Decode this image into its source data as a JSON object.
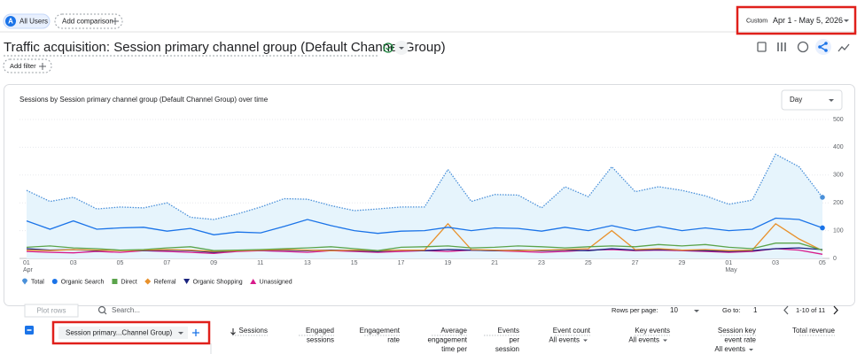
{
  "filters": {
    "segment_initial": "A",
    "segment": "All Users",
    "add_comparison": "Add comparison"
  },
  "date_range": {
    "label": "Custom",
    "value": "Apr 1 - May 5, 2026"
  },
  "page_title": "Traffic acquisition: Session primary channel group (Default Channel Group)",
  "add_filter": "Add filter",
  "granularity": "Day",
  "chart_data": {
    "type": "line",
    "title": "Sessions by Session primary channel group (Default Channel Group) over time",
    "categories": [
      "01",
      null,
      "03",
      null,
      "05",
      null,
      "07",
      null,
      "09",
      null,
      "11",
      null,
      "13",
      null,
      "15",
      null,
      "17",
      null,
      "19",
      null,
      "21",
      null,
      "23",
      null,
      "25",
      null,
      "27",
      null,
      "29",
      null,
      "01",
      null,
      "03",
      null,
      "05"
    ],
    "months": [
      "Apr",
      null,
      null,
      null,
      null,
      null,
      null,
      null,
      null,
      null,
      null,
      null,
      null,
      null,
      null,
      null,
      null,
      null,
      null,
      null,
      null,
      null,
      null,
      null,
      null,
      null,
      null,
      null,
      null,
      null,
      "May",
      null,
      null,
      null,
      null
    ],
    "ylim": [
      0,
      500
    ],
    "yticks": [
      0,
      100,
      200,
      300,
      400,
      500
    ],
    "grid": true,
    "series": [
      {
        "name": "Total",
        "color": "#4a90d9",
        "style": "dotted",
        "area_color": "#e6f4fc",
        "marker": "pin",
        "values": [
          245,
          205,
          220,
          178,
          185,
          182,
          200,
          148,
          140,
          160,
          185,
          215,
          213,
          190,
          172,
          178,
          185,
          185,
          320,
          205,
          230,
          228,
          182,
          258,
          222,
          330,
          240,
          258,
          245,
          225,
          195,
          210,
          375,
          330,
          220
        ]
      },
      {
        "name": "Organic Search",
        "color": "#1a73e8",
        "style": "solid",
        "marker": "circle",
        "values": [
          135,
          105,
          135,
          105,
          110,
          112,
          98,
          108,
          85,
          95,
          92,
          115,
          140,
          118,
          100,
          90,
          98,
          100,
          112,
          100,
          110,
          108,
          98,
          112,
          100,
          118,
          100,
          115,
          100,
          110,
          100,
          105,
          145,
          140,
          110
        ]
      },
      {
        "name": "Direct",
        "color": "#5ba44b",
        "style": "solid",
        "marker": "square",
        "values": [
          40,
          45,
          38,
          35,
          30,
          32,
          38,
          42,
          28,
          30,
          32,
          35,
          38,
          42,
          35,
          28,
          40,
          42,
          45,
          38,
          40,
          45,
          42,
          38,
          42,
          45,
          42,
          50,
          45,
          50,
          40,
          35,
          55,
          55,
          30
        ]
      },
      {
        "name": "Referral",
        "color": "#e8912b",
        "style": "solid",
        "marker": "diamond",
        "values": [
          30,
          28,
          32,
          30,
          28,
          30,
          32,
          30,
          25,
          28,
          30,
          32,
          30,
          28,
          30,
          28,
          30,
          30,
          125,
          32,
          30,
          28,
          30,
          32,
          35,
          100,
          32,
          35,
          30,
          32,
          28,
          30,
          125,
          70,
          28
        ]
      },
      {
        "name": "Organic Shopping",
        "color": "#1a237e",
        "style": "solid",
        "marker": "triangle-down",
        "values": [
          35,
          30,
          32,
          28,
          30,
          28,
          30,
          28,
          22,
          28,
          30,
          30,
          28,
          30,
          28,
          25,
          30,
          28,
          32,
          30,
          28,
          30,
          28,
          30,
          28,
          35,
          30,
          32,
          30,
          28,
          25,
          28,
          35,
          38,
          32
        ]
      },
      {
        "name": "Unassigned",
        "color": "#d81b8b",
        "style": "solid",
        "marker": "triangle-up",
        "values": [
          25,
          22,
          20,
          25,
          22,
          28,
          25,
          22,
          18,
          25,
          28,
          25,
          22,
          28,
          25,
          22,
          25,
          28,
          25,
          30,
          28,
          25,
          22,
          25,
          30,
          32,
          28,
          30,
          28,
          25,
          22,
          25,
          35,
          30,
          15
        ]
      }
    ]
  },
  "table": {
    "plot_rows": "Plot rows",
    "search_placeholder": "Search...",
    "rows_per_page_label": "Rows per page:",
    "rows_per_page": "10",
    "go_to_label": "Go to:",
    "go_to": "1",
    "pagination": "1-10 of 11",
    "dimension": "Session primary...Channel Group)",
    "columns": [
      {
        "lines": [
          "Sessions"
        ]
      },
      {
        "lines": [
          "Engaged",
          "sessions"
        ]
      },
      {
        "lines": [
          "Engagement",
          "rate"
        ]
      },
      {
        "lines": [
          "Average",
          "engagement",
          "time per"
        ]
      },
      {
        "lines": [
          "Events",
          "per",
          "session"
        ]
      },
      {
        "lines": [
          "Event count"
        ],
        "filter": "All events"
      },
      {
        "lines": [
          "Key events"
        ],
        "filter": "All events"
      },
      {
        "lines": [
          "Session key",
          "event rate"
        ],
        "filter": "All events"
      },
      {
        "lines": [
          "Total revenue"
        ]
      }
    ]
  }
}
